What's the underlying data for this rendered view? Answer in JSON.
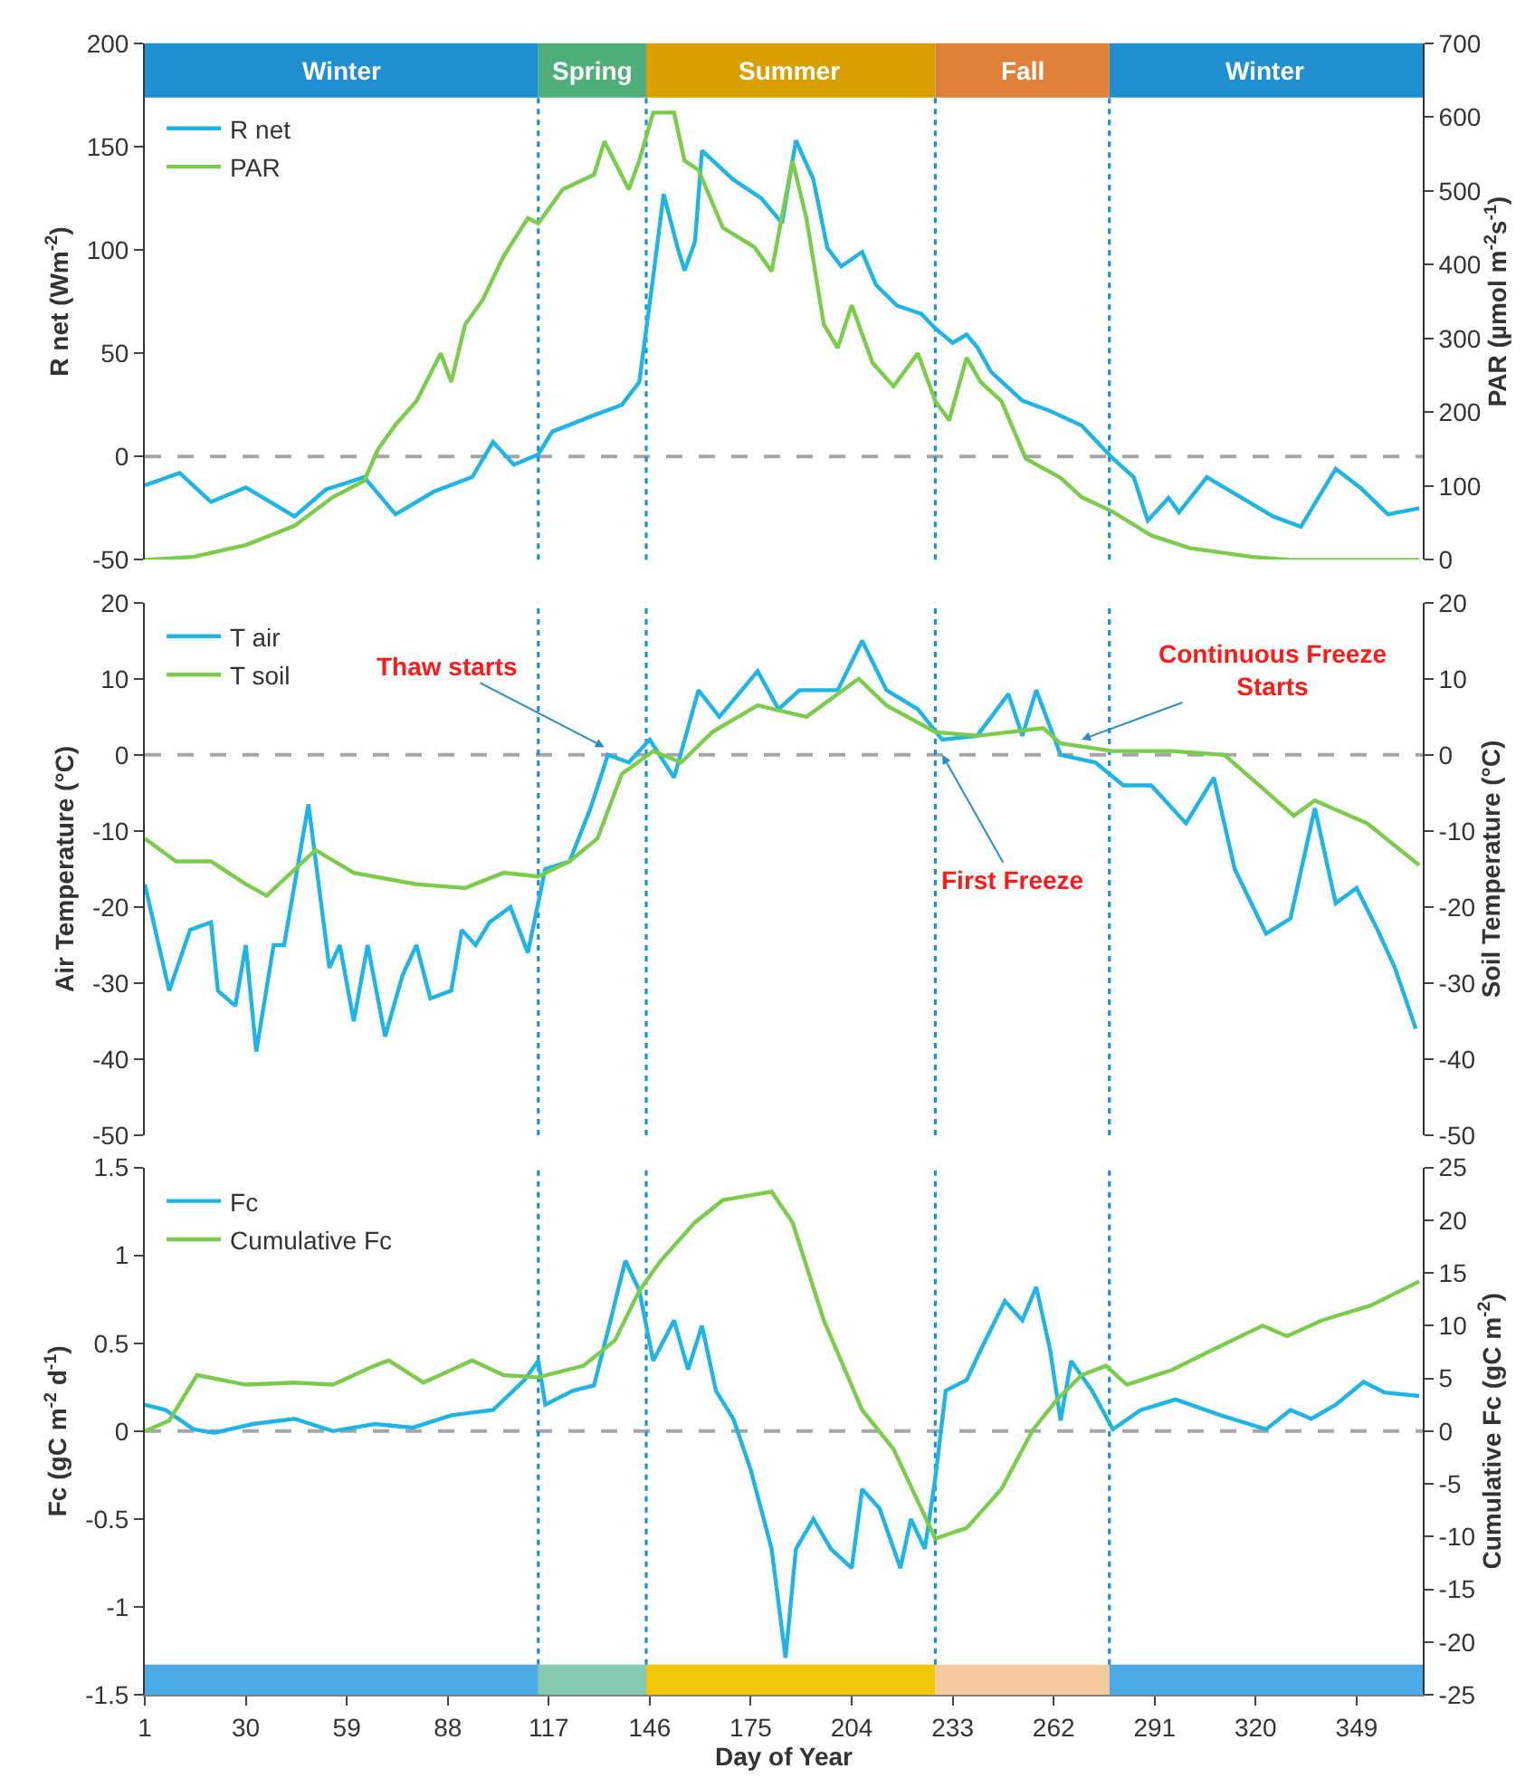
{
  "chart_data": [
    {
      "type": "line",
      "ylabel": "R net (Wm$^{-2}$)",
      "y2label": "PAR (µmol m$^{-2}$s$^{-1}$)",
      "xlim": [
        1,
        368
      ],
      "ylim": [
        -50,
        200
      ],
      "yticks": [
        -50,
        0,
        50,
        100,
        150,
        200
      ],
      "y2lim": [
        0,
        700
      ],
      "y2ticks": [
        0,
        100,
        200,
        300,
        400,
        500,
        600,
        700
      ],
      "tick_labels": "y",
      "grid": false,
      "legend": "top left",
      "marker": "none",
      "series": [
        {
          "name": "R net",
          "color": "#1eb4e6",
          "x": [
            1,
            11,
            20,
            30,
            44,
            53,
            64,
            73,
            84,
            95,
            101,
            107,
            114,
            118,
            130,
            138,
            143,
            147,
            150,
            154,
            156,
            159,
            161,
            170,
            178,
            184,
            188,
            193,
            197,
            201,
            207,
            211,
            217,
            224,
            228,
            233,
            237,
            240,
            244,
            253,
            261,
            270,
            279,
            285,
            289,
            295,
            298,
            306,
            316,
            325,
            333,
            343,
            350,
            358,
            367
          ],
          "values": [
            -14,
            -8,
            -22,
            -15,
            -29,
            -16,
            -10,
            -28,
            -17,
            -10,
            7,
            -4,
            1,
            12,
            20,
            25,
            36,
            87,
            127,
            101,
            90,
            104,
            148,
            134,
            125,
            113,
            153,
            134,
            101,
            92,
            99,
            83,
            73,
            69,
            62,
            55,
            59,
            53,
            41,
            27,
            22,
            15,
            -1,
            -10,
            -31,
            -20,
            -27,
            -10,
            -20,
            -29,
            -34,
            -6,
            -15,
            -28,
            -25
          ]
        },
        {
          "name": "PAR",
          "color": "#7ccc4c",
          "axis": "y2",
          "x": [
            1,
            15,
            30,
            44,
            55,
            64,
            68,
            73,
            79,
            86,
            89,
            93,
            98,
            104,
            111,
            114,
            121,
            130,
            133,
            140,
            143,
            147,
            153,
            156,
            160,
            167,
            176,
            181,
            187,
            191,
            196,
            200,
            204,
            210,
            216,
            223,
            228,
            232,
            237,
            241,
            247,
            254,
            264,
            270,
            279,
            290,
            301,
            319,
            330,
            367
          ],
          "values": [
            0,
            4,
            20,
            46,
            85,
            107,
            150,
            183,
            215,
            280,
            241,
            319,
            352,
            411,
            463,
            456,
            502,
            522,
            567,
            502,
            541,
            606,
            606,
            541,
            528,
            450,
            424,
            391,
            541,
            463,
            319,
            287,
            345,
            267,
            235,
            280,
            215,
            189,
            274,
            241,
            215,
            137,
            111,
            85,
            65,
            33,
            16,
            4,
            0,
            0
          ]
        }
      ],
      "ref_lines": [
        {
          "axis": "y",
          "value": 0,
          "color": "#a6a6a6",
          "line_style": "dashed"
        },
        {
          "axis": "x",
          "value": 114,
          "color": "#1f8fcf",
          "line_style": "dotted"
        },
        {
          "axis": "x",
          "value": 145,
          "color": "#1f8fcf",
          "line_style": "dotted"
        },
        {
          "axis": "x",
          "value": 228,
          "color": "#1f8fcf",
          "line_style": "dotted"
        },
        {
          "axis": "x",
          "value": 278,
          "color": "#1f8fcf",
          "line_style": "dotted"
        }
      ],
      "bands": [
        {
          "axis": "x",
          "from": 1,
          "to": 114,
          "label": "Winter",
          "color": "#1f8fcf"
        },
        {
          "axis": "x",
          "from": 114,
          "to": 145,
          "label": "Spring",
          "color": "#4fae7a"
        },
        {
          "axis": "x",
          "from": 145,
          "to": 228,
          "label": "Summer",
          "color": "#d99e00"
        },
        {
          "axis": "x",
          "from": 228,
          "to": 278,
          "label": "Fall",
          "color": "#e0813a"
        },
        {
          "axis": "x",
          "from": 278,
          "to": 368,
          "label": "Winter",
          "color": "#1f8fcf"
        }
      ]
    },
    {
      "type": "line",
      "ylabel": "Air Temperature (°C)",
      "y2label": "Soil Temperature (°C)",
      "xlim": [
        1,
        368
      ],
      "ylim": [
        -50,
        20
      ],
      "yticks": [
        -50,
        -40,
        -30,
        -20,
        -10,
        0,
        10,
        20
      ],
      "y2lim": [
        -50,
        20
      ],
      "y2ticks": [
        -50,
        -40,
        -30,
        -20,
        -10,
        0,
        10,
        20
      ],
      "tick_labels": "y",
      "grid": false,
      "legend": "top left",
      "marker": "none",
      "series": [
        {
          "name": "T air",
          "color": "#1eb4e6",
          "x": [
            1,
            8,
            14,
            20,
            22,
            27,
            30,
            33,
            38,
            41,
            48,
            54,
            57,
            61,
            65,
            70,
            75,
            79,
            83,
            89,
            92,
            96,
            100,
            106,
            111,
            116,
            123,
            129,
            134,
            140,
            146,
            153,
            160,
            166,
            177,
            183,
            189,
            200,
            207,
            214,
            223,
            230,
            240,
            249,
            253,
            257,
            264,
            274,
            282,
            290,
            300,
            308,
            314,
            323,
            330,
            337,
            343,
            349,
            355,
            360,
            366
          ],
          "values": [
            -17,
            -31,
            -23,
            -22,
            -31,
            -33,
            -25,
            -39,
            -25,
            -25,
            -6.5,
            -28,
            -25,
            -35,
            -25,
            -37,
            -29,
            -25,
            -32,
            -31,
            -23,
            -25,
            -22,
            -20,
            -26,
            -15,
            -14,
            -7,
            0,
            -1,
            2,
            -3,
            8.5,
            5,
            11,
            6,
            8.5,
            8.5,
            15,
            8.5,
            6,
            2,
            2.5,
            8,
            2.5,
            8.5,
            0,
            -1,
            -4,
            -4,
            -9,
            -3,
            -15,
            -23.5,
            -21.5,
            -7,
            -19.5,
            -17.5,
            -23,
            -28,
            -36
          ]
        },
        {
          "name": "T soil",
          "color": "#7ccc4c",
          "axis": "y2",
          "x": [
            1,
            10,
            20,
            30,
            36,
            50,
            61,
            79,
            93,
            104,
            114,
            123,
            131,
            138,
            147,
            155,
            164,
            177,
            191,
            206,
            214,
            228,
            240,
            259,
            264,
            279,
            296,
            311,
            321,
            331,
            337,
            352,
            367
          ],
          "values": [
            -11,
            -14,
            -14,
            -17,
            -18.5,
            -12.5,
            -15.5,
            -17,
            -17.5,
            -15.5,
            -16,
            -14,
            -11,
            -2.5,
            0.5,
            -1,
            3,
            6.5,
            5,
            10,
            6.5,
            3,
            2.5,
            3.5,
            1.5,
            0.5,
            0.5,
            0,
            -4,
            -8,
            -6,
            -9,
            -14.5
          ]
        }
      ],
      "ref_lines": [
        {
          "axis": "y",
          "value": 0,
          "color": "#a6a6a6",
          "line_style": "dashed"
        },
        {
          "axis": "x",
          "value": 114,
          "color": "#1f8fcf",
          "line_style": "dotted"
        },
        {
          "axis": "x",
          "value": 145,
          "color": "#1f8fcf",
          "line_style": "dotted"
        },
        {
          "axis": "x",
          "value": 228,
          "color": "#1f8fcf",
          "line_style": "dotted"
        },
        {
          "axis": "x",
          "value": 278,
          "color": "#1f8fcf",
          "line_style": "dotted"
        }
      ],
      "annotations": [
        {
          "text": "Thaw starts",
          "x": 133,
          "y": 1
        },
        {
          "text": "Continuous Freeze\nStarts",
          "x": 270,
          "y": 2
        },
        {
          "text": "First Freeze",
          "x": 230,
          "y": 0
        }
      ]
    },
    {
      "type": "line",
      "xlabel": "Day of Year",
      "ylabel": "Fc (gC m$^{-2}$ d$^{-1}$)",
      "y2label": "Cumulative Fc (gC m$^{-2}$)",
      "xlim": [
        1,
        368
      ],
      "xticks": [
        1,
        30,
        59,
        88,
        117,
        146,
        175,
        204,
        233,
        262,
        291,
        320,
        349
      ],
      "ylim": [
        -1.5,
        1.5
      ],
      "yticks": [
        -1.5,
        -1,
        -0.5,
        0,
        0.5,
        1,
        1.5
      ],
      "y2lim": [
        -25,
        25
      ],
      "y2ticks": [
        -25,
        -20,
        -15,
        -10,
        -5,
        0,
        5,
        10,
        15,
        20,
        25
      ],
      "grid": false,
      "legend": "top left",
      "marker": "none",
      "series": [
        {
          "name": "Fc",
          "color": "#1eb4e6",
          "x": [
            1,
            7,
            15,
            21,
            32,
            44,
            55,
            67,
            78,
            89,
            101,
            110,
            114,
            116,
            124,
            130,
            134,
            139,
            143,
            147,
            153,
            157,
            161,
            165,
            170,
            175,
            181,
            185,
            188,
            193,
            198,
            204,
            207,
            212,
            218,
            221,
            225,
            228,
            231,
            237,
            241,
            248,
            253,
            257,
            261,
            264,
            267,
            273,
            279,
            287,
            297,
            310,
            323,
            330,
            336,
            343,
            351,
            357,
            367
          ],
          "values": [
            0.15,
            0.12,
            0.01,
            -0.01,
            0.04,
            0.07,
            0,
            0.04,
            0.02,
            0.09,
            0.12,
            0.29,
            0.4,
            0.15,
            0.23,
            0.26,
            0.57,
            0.97,
            0.8,
            0.4,
            0.63,
            0.35,
            0.6,
            0.23,
            0.07,
            -0.22,
            -0.67,
            -1.29,
            -0.67,
            -0.5,
            -0.67,
            -0.78,
            -0.33,
            -0.44,
            -0.78,
            -0.5,
            -0.67,
            -0.27,
            0.23,
            0.29,
            0.46,
            0.74,
            0.63,
            0.82,
            0.46,
            0.06,
            0.4,
            0.23,
            0.01,
            0.12,
            0.18,
            0.09,
            0.01,
            0.12,
            0.07,
            0.15,
            0.28,
            0.22,
            0.2
          ]
        },
        {
          "name": "Cumulative Fc",
          "color": "#7ccc4c",
          "axis": "y2",
          "x": [
            1,
            8,
            16,
            30,
            44,
            55,
            67,
            71,
            81,
            95,
            104,
            114,
            127,
            136,
            143,
            149,
            159,
            167,
            181,
            187,
            196,
            207,
            216,
            228,
            237,
            247,
            256,
            263,
            270,
            277,
            283,
            296,
            307,
            322,
            329,
            339,
            353,
            367
          ],
          "values": [
            0,
            1,
            5.3,
            4.4,
            4.6,
            4.4,
            6.2,
            6.7,
            4.6,
            6.7,
            5.3,
            5.1,
            6.2,
            8.6,
            13.3,
            16.1,
            19.8,
            21.9,
            22.7,
            19.8,
            10.5,
            2,
            -1.7,
            -10.2,
            -9.2,
            -5.5,
            0.1,
            3,
            5.3,
            6.2,
            4.4,
            5.8,
            7.6,
            10,
            9,
            10.5,
            11.9,
            14.2
          ]
        }
      ],
      "ref_lines": [
        {
          "axis": "y",
          "value": 0,
          "color": "#a6a6a6",
          "line_style": "dashed"
        },
        {
          "axis": "x",
          "value": 114,
          "color": "#1f8fcf",
          "line_style": "dotted"
        },
        {
          "axis": "x",
          "value": 145,
          "color": "#1f8fcf",
          "line_style": "dotted"
        },
        {
          "axis": "x",
          "value": 228,
          "color": "#1f8fcf",
          "line_style": "dotted"
        },
        {
          "axis": "x",
          "value": 278,
          "color": "#1f8fcf",
          "line_style": "dotted"
        }
      ],
      "bands": [
        {
          "axis": "x",
          "from": 1,
          "to": 114,
          "color": "#4ba9e3"
        },
        {
          "axis": "x",
          "from": 114,
          "to": 145,
          "color": "#86c9b0"
        },
        {
          "axis": "x",
          "from": 145,
          "to": 228,
          "color": "#f2c40a"
        },
        {
          "axis": "x",
          "from": 228,
          "to": 278,
          "color": "#f5c9a0"
        },
        {
          "axis": "x",
          "from": 278,
          "to": 368,
          "color": "#4ba9e3"
        }
      ]
    }
  ]
}
